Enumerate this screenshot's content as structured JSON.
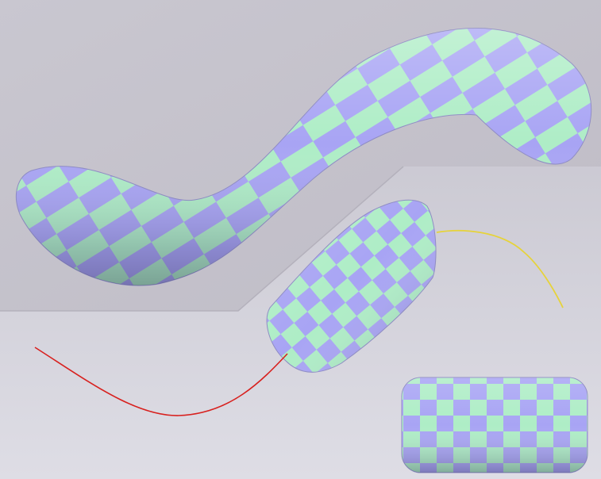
{
  "scene": {
    "colors": {
      "background_top": "#c2c0ca",
      "background_bottom": "#dedde5",
      "plane_left": "#c9c7d0",
      "plane_right": "#bfbcc6",
      "checker_purple": "#a8a4f4",
      "checker_green": "#aeedc6",
      "curve_red": "#d8201e",
      "curve_yellow": "#e6d33a"
    },
    "objects": [
      {
        "name": "large-bent-tube",
        "icon": "checkered-tube"
      },
      {
        "name": "medium-short-tube",
        "icon": "checkered-tube"
      },
      {
        "name": "small-straight-tube",
        "icon": "checkered-tube"
      },
      {
        "name": "red-sweep-curve",
        "icon": "spline-curve"
      },
      {
        "name": "yellow-sweep-curve",
        "icon": "spline-curve"
      }
    ]
  }
}
